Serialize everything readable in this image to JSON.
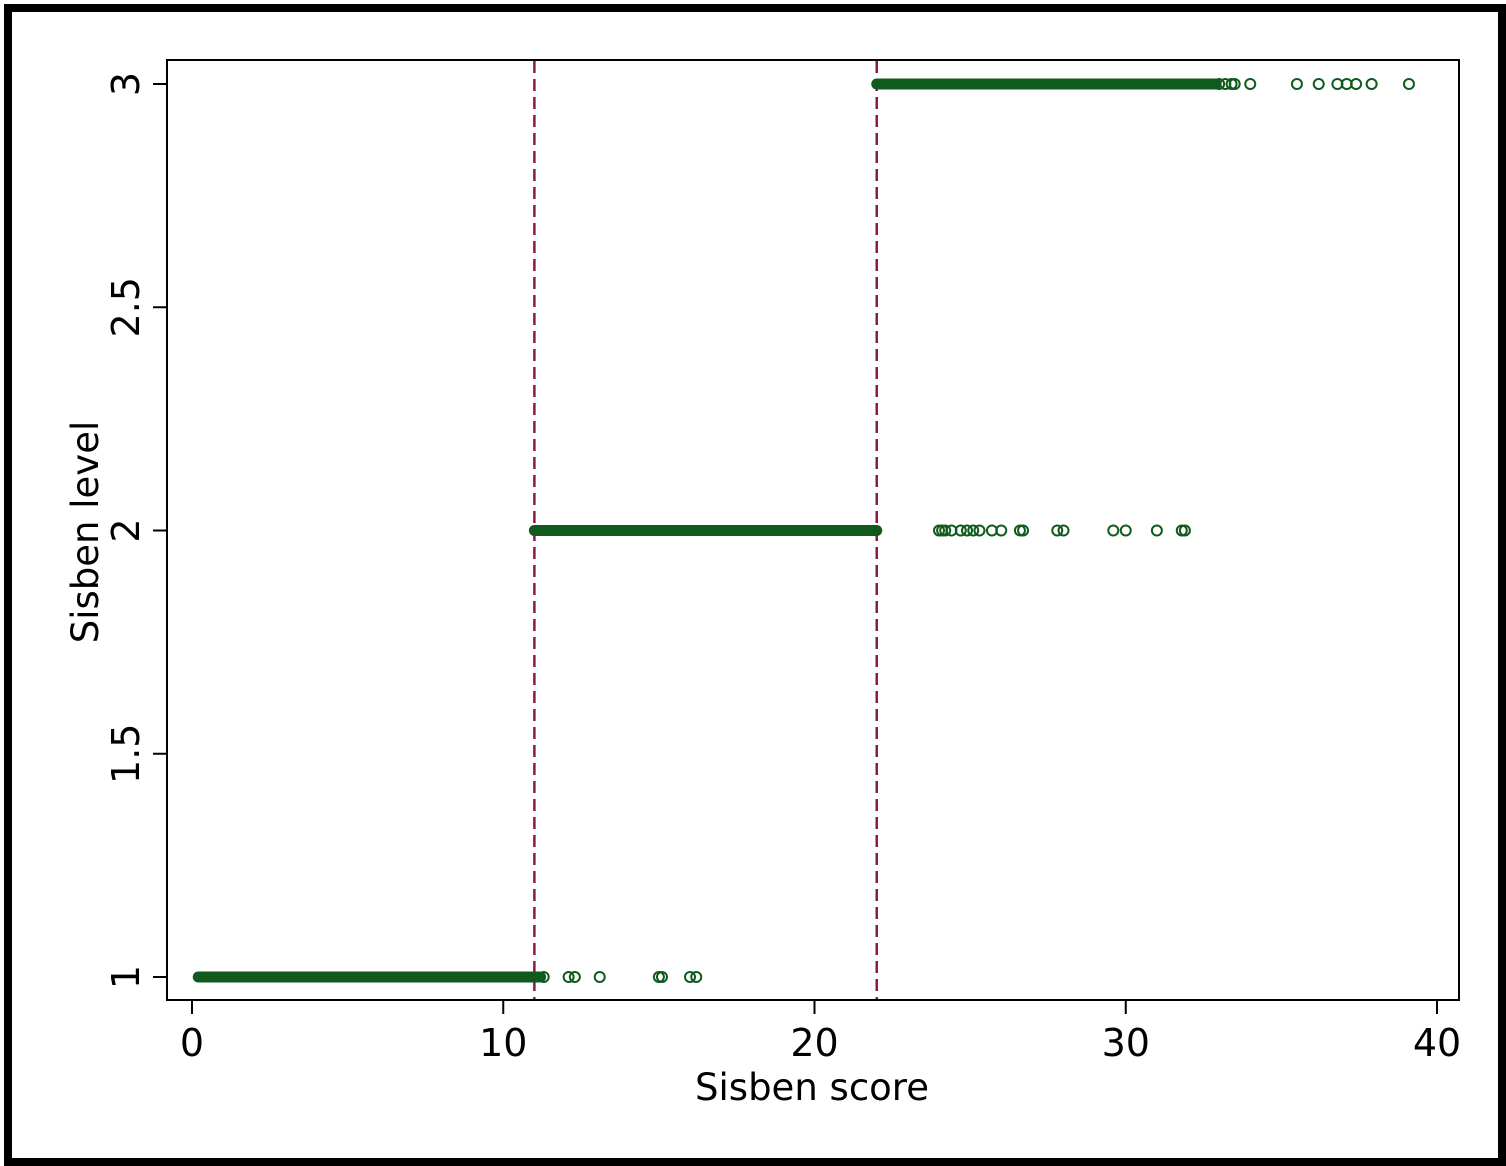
{
  "chart_data": {
    "type": "scatter",
    "title": "",
    "xlabel": "Sisben score",
    "ylabel": "Sisben level",
    "xlim": [
      -0.8,
      41.0
    ],
    "ylim": [
      0.95,
      3.05
    ],
    "xticks": [
      0,
      10,
      20,
      30,
      40
    ],
    "yticks": [
      1,
      1.5,
      2,
      2.5,
      3
    ],
    "ytick_labels": [
      "1",
      "1.5",
      "2",
      "2.5",
      "3"
    ],
    "grid": false,
    "legend": "none",
    "marker_color": "#0f5a1c",
    "cutoff_color": "#8b1a4a",
    "cutoffs": [
      11.0,
      22.0
    ],
    "series": [
      {
        "level": 1,
        "dense_range": [
          0.2,
          11.2
        ],
        "points": [
          11.3,
          12.1,
          12.3,
          13.1,
          15.0,
          15.1,
          16.0,
          16.2
        ]
      },
      {
        "level": 2,
        "dense_range": [
          11.0,
          22.0
        ],
        "points": [
          24.0,
          24.1,
          24.2,
          24.4,
          24.7,
          24.9,
          25.1,
          25.3,
          25.7,
          26.0,
          26.6,
          26.7,
          27.8,
          28.0,
          29.6,
          30.0,
          31.0,
          31.8,
          31.9
        ]
      },
      {
        "level": 3,
        "dense_range": [
          22.0,
          32.9
        ],
        "points": [
          33.0,
          33.2,
          33.4,
          33.5,
          34.0,
          35.5,
          36.2,
          36.8,
          37.1,
          37.4,
          37.9,
          39.1
        ]
      }
    ]
  }
}
